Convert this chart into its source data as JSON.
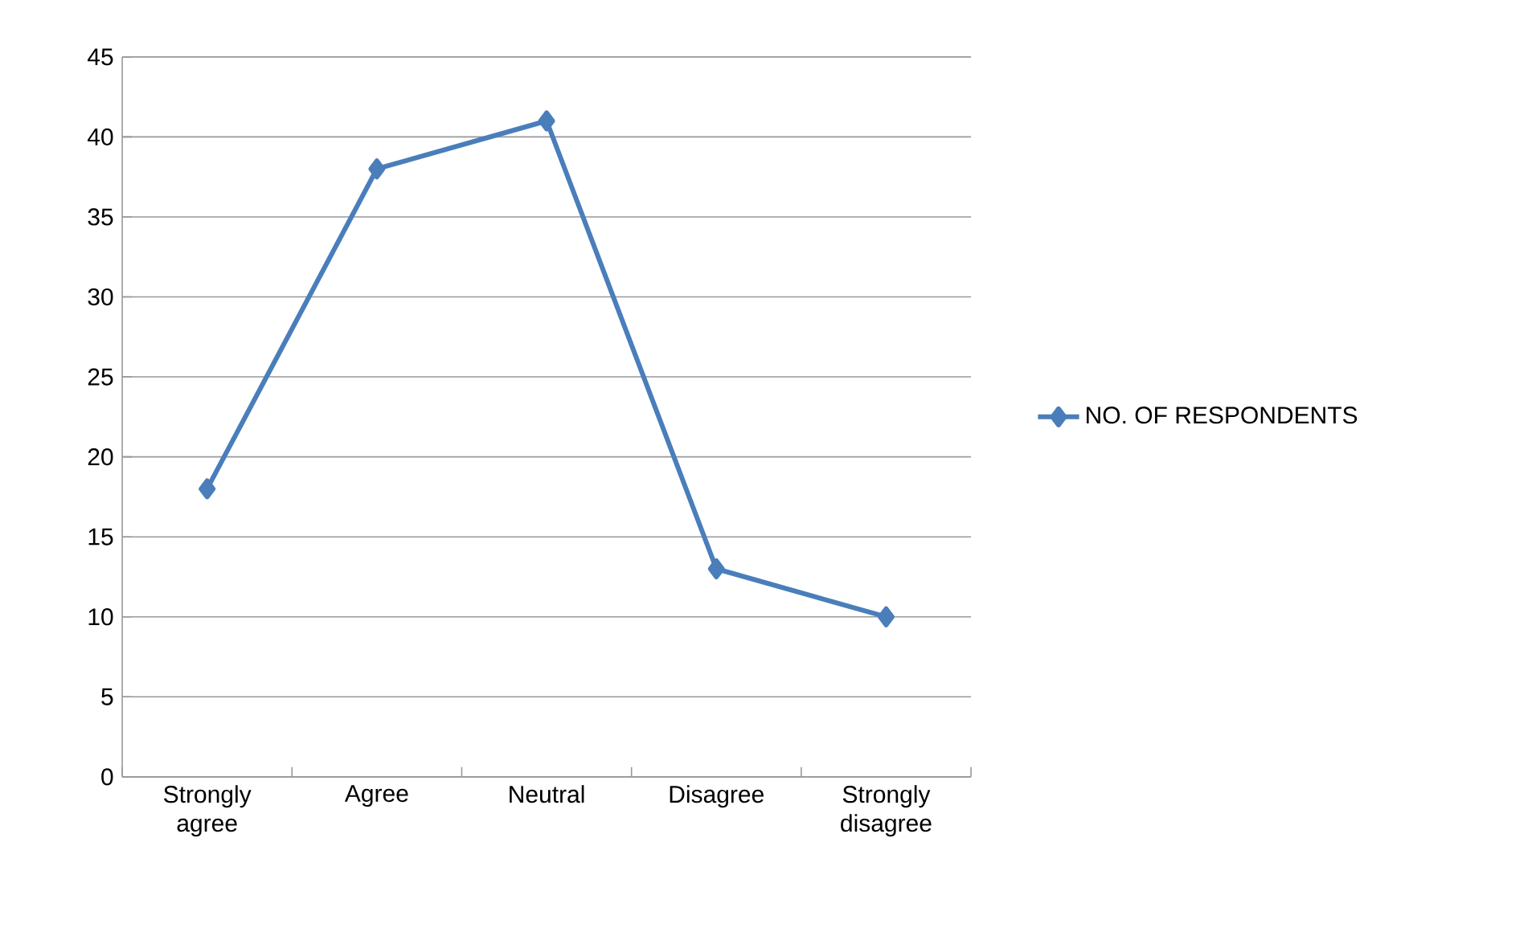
{
  "chart_data": {
    "type": "line",
    "categories": [
      "Strongly agree",
      "Agree",
      "Neutral",
      "Disagree",
      "Strongly disagree"
    ],
    "series": [
      {
        "name": "NO. OF RESPONDENTS",
        "color": "#4a7ebb",
        "values": [
          18,
          38,
          41,
          13,
          10
        ]
      }
    ],
    "ylim": [
      0,
      45
    ],
    "yticks": [
      0,
      5,
      10,
      15,
      20,
      25,
      30,
      35,
      40,
      45
    ],
    "grid": "y",
    "legend": "right",
    "marker": "diamond",
    "line_style": "solid"
  }
}
